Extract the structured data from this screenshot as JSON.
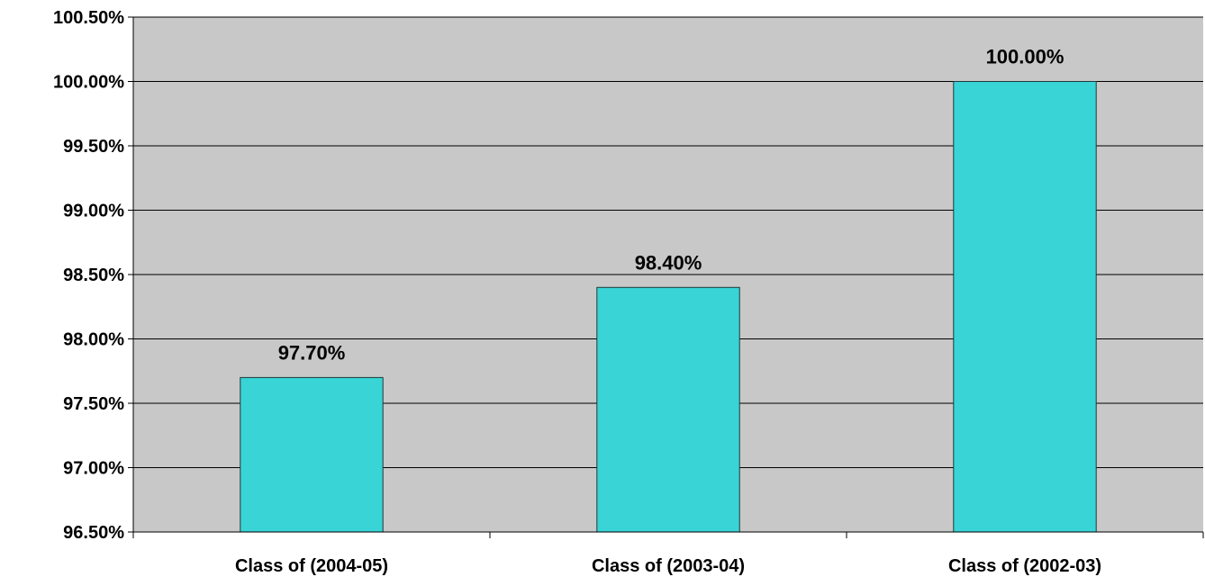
{
  "chart_data": {
    "type": "bar",
    "categories": [
      "Class of (2004-05)",
      "Class of (2003-04)",
      "Class of (2002-03)"
    ],
    "values": [
      97.7,
      98.4,
      100.0
    ],
    "data_labels": [
      "97.70%",
      "98.40%",
      "100.00%"
    ],
    "title": "",
    "xlabel": "",
    "ylabel": "",
    "ylim": [
      96.5,
      100.5
    ],
    "yticks": [
      96.5,
      97.0,
      97.5,
      98.0,
      98.5,
      99.0,
      99.5,
      100.0,
      100.5
    ],
    "ytick_labels": [
      "96.50%",
      "97.00%",
      "97.50%",
      "98.00%",
      "98.50%",
      "99.00%",
      "99.50%",
      "100.00%",
      "100.50%"
    ],
    "grid": true,
    "legend": "none",
    "colors": {
      "bar": "#38D4D6",
      "bar_border": "#1f3a3a",
      "plot_background": "#C8C8C8",
      "gridline": "#000000"
    }
  }
}
